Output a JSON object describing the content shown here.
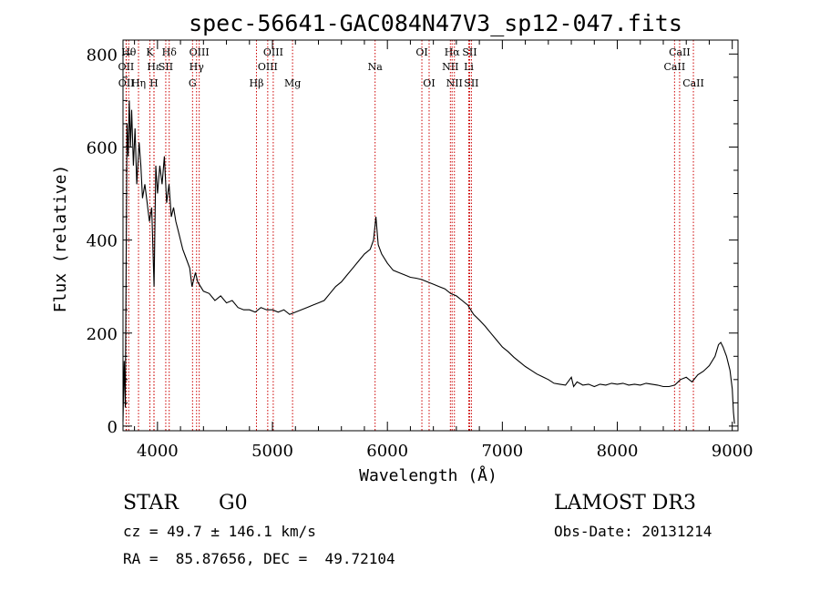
{
  "chart_data": {
    "type": "line",
    "title": "spec-56641-GAC084N47V3_sp12-047.fits",
    "xlabel": "Wavelength (Å)",
    "ylabel": "Flux (relative)",
    "xlim": [
      3700,
      9050
    ],
    "ylim": [
      -10,
      830
    ],
    "x_ticks": [
      4000,
      5000,
      6000,
      7000,
      8000,
      9000
    ],
    "y_ticks": [
      0,
      200,
      400,
      600,
      800
    ],
    "series": [
      {
        "name": "flux",
        "points": [
          [
            3700,
            10
          ],
          [
            3710,
            140
          ],
          [
            3720,
            40
          ],
          [
            3735,
            650
          ],
          [
            3745,
            580
          ],
          [
            3755,
            700
          ],
          [
            3765,
            600
          ],
          [
            3775,
            680
          ],
          [
            3790,
            560
          ],
          [
            3805,
            640
          ],
          [
            3820,
            520
          ],
          [
            3840,
            610
          ],
          [
            3855,
            560
          ],
          [
            3870,
            490
          ],
          [
            3890,
            520
          ],
          [
            3910,
            480
          ],
          [
            3930,
            440
          ],
          [
            3950,
            470
          ],
          [
            3970,
            300
          ],
          [
            3985,
            560
          ],
          [
            4000,
            500
          ],
          [
            4020,
            560
          ],
          [
            4040,
            520
          ],
          [
            4060,
            580
          ],
          [
            4080,
            480
          ],
          [
            4100,
            520
          ],
          [
            4120,
            450
          ],
          [
            4140,
            470
          ],
          [
            4160,
            440
          ],
          [
            4180,
            420
          ],
          [
            4200,
            400
          ],
          [
            4220,
            380
          ],
          [
            4250,
            360
          ],
          [
            4280,
            340
          ],
          [
            4300,
            300
          ],
          [
            4330,
            330
          ],
          [
            4350,
            310
          ],
          [
            4400,
            290
          ],
          [
            4450,
            285
          ],
          [
            4500,
            270
          ],
          [
            4550,
            280
          ],
          [
            4600,
            265
          ],
          [
            4650,
            270
          ],
          [
            4700,
            255
          ],
          [
            4750,
            250
          ],
          [
            4800,
            250
          ],
          [
            4850,
            245
          ],
          [
            4900,
            255
          ],
          [
            4950,
            250
          ],
          [
            5000,
            250
          ],
          [
            5050,
            245
          ],
          [
            5100,
            250
          ],
          [
            5150,
            240
          ],
          [
            5200,
            245
          ],
          [
            5250,
            250
          ],
          [
            5300,
            255
          ],
          [
            5350,
            260
          ],
          [
            5400,
            265
          ],
          [
            5450,
            270
          ],
          [
            5500,
            285
          ],
          [
            5550,
            300
          ],
          [
            5600,
            310
          ],
          [
            5650,
            325
          ],
          [
            5700,
            340
          ],
          [
            5750,
            355
          ],
          [
            5800,
            370
          ],
          [
            5850,
            380
          ],
          [
            5880,
            400
          ],
          [
            5900,
            450
          ],
          [
            5920,
            390
          ],
          [
            5950,
            370
          ],
          [
            6000,
            350
          ],
          [
            6050,
            335
          ],
          [
            6100,
            330
          ],
          [
            6150,
            325
          ],
          [
            6200,
            320
          ],
          [
            6250,
            318
          ],
          [
            6300,
            315
          ],
          [
            6350,
            310
          ],
          [
            6400,
            305
          ],
          [
            6450,
            300
          ],
          [
            6500,
            295
          ],
          [
            6550,
            285
          ],
          [
            6600,
            280
          ],
          [
            6650,
            270
          ],
          [
            6700,
            260
          ],
          [
            6750,
            240
          ],
          [
            6800,
            228
          ],
          [
            6850,
            215
          ],
          [
            6900,
            200
          ],
          [
            6950,
            185
          ],
          [
            7000,
            170
          ],
          [
            7050,
            160
          ],
          [
            7100,
            148
          ],
          [
            7150,
            138
          ],
          [
            7200,
            128
          ],
          [
            7250,
            120
          ],
          [
            7300,
            112
          ],
          [
            7350,
            106
          ],
          [
            7400,
            100
          ],
          [
            7450,
            92
          ],
          [
            7500,
            90
          ],
          [
            7550,
            88
          ],
          [
            7600,
            105
          ],
          [
            7620,
            85
          ],
          [
            7650,
            95
          ],
          [
            7700,
            88
          ],
          [
            7750,
            90
          ],
          [
            7800,
            85
          ],
          [
            7850,
            90
          ],
          [
            7900,
            88
          ],
          [
            7950,
            92
          ],
          [
            8000,
            90
          ],
          [
            8050,
            92
          ],
          [
            8100,
            88
          ],
          [
            8150,
            90
          ],
          [
            8200,
            88
          ],
          [
            8250,
            92
          ],
          [
            8300,
            90
          ],
          [
            8350,
            88
          ],
          [
            8400,
            85
          ],
          [
            8450,
            85
          ],
          [
            8500,
            88
          ],
          [
            8550,
            100
          ],
          [
            8600,
            105
          ],
          [
            8650,
            95
          ],
          [
            8700,
            110
          ],
          [
            8750,
            118
          ],
          [
            8800,
            130
          ],
          [
            8850,
            150
          ],
          [
            8880,
            175
          ],
          [
            8900,
            180
          ],
          [
            8920,
            170
          ],
          [
            8950,
            150
          ],
          [
            8980,
            120
          ],
          [
            9000,
            80
          ],
          [
            9010,
            30
          ],
          [
            9020,
            5
          ]
        ]
      }
    ],
    "lines_color": "#cc0000",
    "spectral_lines": [
      {
        "name": "Hθ",
        "wave": 3750,
        "row": 0
      },
      {
        "name": "OII",
        "wave": 3727,
        "row": 1
      },
      {
        "name": "OII",
        "wave": 3729,
        "row": 2
      },
      {
        "name": "Hε",
        "wave": 3970,
        "row": 1
      },
      {
        "name": "Hη",
        "wave": 3835,
        "row": 2
      },
      {
        "name": "K",
        "wave": 3934,
        "row": 0
      },
      {
        "name": "H",
        "wave": 3969,
        "row": 2
      },
      {
        "name": "Hδ",
        "wave": 4102,
        "row": 0
      },
      {
        "name": "SII",
        "wave": 4072,
        "row": 1
      },
      {
        "name": "OIII",
        "wave": 4363,
        "row": 0
      },
      {
        "name": "Hγ",
        "wave": 4340,
        "row": 1
      },
      {
        "name": "G",
        "wave": 4305,
        "row": 2
      },
      {
        "name": "Hβ",
        "wave": 4861,
        "row": 2
      },
      {
        "name": "OIII",
        "wave": 5007,
        "row": 0
      },
      {
        "name": "OIII",
        "wave": 4959,
        "row": 1
      },
      {
        "name": "Mg",
        "wave": 5175,
        "row": 2
      },
      {
        "name": "Na",
        "wave": 5893,
        "row": 1
      },
      {
        "name": "OI",
        "wave": 6300,
        "row": 0
      },
      {
        "name": "OI",
        "wave": 6363,
        "row": 2
      },
      {
        "name": "Hα",
        "wave": 6563,
        "row": 0
      },
      {
        "name": "NII",
        "wave": 6548,
        "row": 1
      },
      {
        "name": "NII",
        "wave": 6583,
        "row": 2
      },
      {
        "name": "SII",
        "wave": 6716,
        "row": 0
      },
      {
        "name": "Li",
        "wave": 6708,
        "row": 1
      },
      {
        "name": "SII",
        "wave": 6731,
        "row": 2
      },
      {
        "name": "CaII",
        "wave": 8542,
        "row": 0
      },
      {
        "name": "CaII",
        "wave": 8498,
        "row": 1
      },
      {
        "name": "CaII",
        "wave": 8662,
        "row": 2
      }
    ]
  },
  "info": {
    "class": "STAR",
    "subclass": "G0",
    "survey": "LAMOST DR3",
    "cz": "cz = 49.7 ± 146.1 km/s",
    "obs_date": "Obs-Date: 20131214",
    "coords": "RA =  85.87656, DEC =  49.72104"
  }
}
